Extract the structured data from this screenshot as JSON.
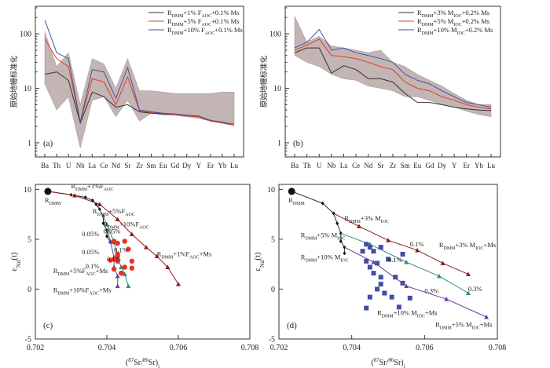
{
  "colors": {
    "black": "#333333",
    "red": "#e03c2c",
    "blue": "#4a4fa8",
    "band": "#b9a9a6",
    "darkred": "#8b1a1a",
    "green": "#2e8b6f",
    "purple": "#6a3d9a",
    "dot": "#e8321e",
    "square": "#4050a8"
  },
  "chart_data": [
    {
      "id": "a",
      "type": "line",
      "panel_label": "(a)",
      "ylabel": "原始地幔标准化",
      "yscale": "log",
      "ylim": [
        0.55,
        320
      ],
      "ytick_labels": [
        "1",
        "10",
        "100"
      ],
      "ytick_values": [
        1,
        10,
        100
      ],
      "categories": [
        "Ba",
        "Th",
        "U",
        "Nb",
        "La",
        "Ce",
        "Nd",
        "Sr",
        "Zr",
        "Sm",
        "Eu",
        "Gd",
        "Dy",
        "Y",
        "Er",
        "Yb",
        "Lu"
      ],
      "band": {
        "upper": [
          110,
          25,
          45,
          5,
          35,
          28,
          10,
          35,
          9,
          9,
          8.5,
          8,
          8,
          8,
          8,
          8.5,
          8.5
        ],
        "lower": [
          12,
          4,
          7,
          0.8,
          6,
          7,
          3,
          6,
          2.5,
          3.5,
          3.2,
          3.2,
          3,
          2.8,
          2.5,
          2.3,
          2.2
        ]
      },
      "series": [
        {
          "name": "R DMM+1%F AOC+0.1%Ms",
          "color": "black",
          "values": [
            18,
            20,
            14,
            2.3,
            8.5,
            7,
            4.5,
            5,
            3.7,
            3.5,
            3.4,
            3.3,
            3.1,
            3.0,
            2.5,
            2.3,
            2.1
          ]
        },
        {
          "name": "R DMM+5%F AOC+0.1%Ms",
          "color": "red",
          "values": [
            80,
            35,
            25,
            2.4,
            15,
            13,
            5,
            16,
            3.9,
            3.6,
            3.5,
            3.3,
            3.1,
            3.0,
            2.5,
            2.3,
            2.1
          ]
        },
        {
          "name": "R DMM+10%F AOC+0.1%Ms",
          "color": "blue",
          "values": [
            180,
            45,
            35,
            2.4,
            22,
            20,
            6.5,
            24,
            4,
            3.7,
            3.5,
            3.4,
            3.2,
            3.1,
            2.6,
            2.4,
            2.2
          ]
        }
      ],
      "legend": [
        {
          "base": "R",
          "sub": "DMM",
          "mid": "+1% F",
          "sub2": "AOC",
          "tail": "+0.1% Ms",
          "color": "black"
        },
        {
          "base": "R",
          "sub": "DMM",
          "mid": "+5% F",
          "sub2": "AOC",
          "tail": "+0.1% Ms",
          "color": "red"
        },
        {
          "base": "R",
          "sub": "DMM",
          "mid": "+10% F",
          "sub2": "AOC",
          "tail": "+0.1% Ms",
          "color": "blue"
        }
      ]
    },
    {
      "id": "b",
      "type": "line",
      "panel_label": "(b)",
      "ylabel": "原始地幔标准化",
      "yscale": "log",
      "ylim": [
        0.55,
        320
      ],
      "ytick_labels": [
        "1",
        "10",
        "100"
      ],
      "ytick_values": [
        1,
        10,
        100
      ],
      "categories": [
        "Ba",
        "Th",
        "U",
        "Nb",
        "La",
        "Ce",
        "Nd",
        "Sr",
        "Zr",
        "Sm",
        "Eu",
        "Gd",
        "Dy",
        "Y",
        "Er",
        "Yb",
        "Lu"
      ],
      "band": {
        "upper": [
          210,
          70,
          90,
          60,
          55,
          50,
          45,
          50,
          30,
          25,
          18,
          14,
          11,
          8,
          6,
          5,
          5
        ],
        "lower": [
          40,
          30,
          25,
          18,
          15,
          14,
          11,
          10,
          9,
          7,
          7,
          6,
          5,
          4.5,
          3.8,
          3.3,
          3
        ]
      },
      "series": [
        {
          "name": "R DMM+3% M IOC+0.2% Ms",
          "color": "black",
          "values": [
            45,
            55,
            55,
            19,
            26,
            22,
            15,
            15,
            13,
            8,
            5.5,
            5.5,
            5,
            4.5,
            4.2,
            4,
            3.9
          ]
        },
        {
          "name": "R DMM+5% M IOC+0.2% Ms",
          "color": "red",
          "values": [
            50,
            62,
            80,
            40,
            38,
            35,
            30,
            25,
            22,
            13,
            10,
            9,
            7,
            6,
            5,
            4.5,
            4.2
          ]
        },
        {
          "name": "R DMM+10% M IOC+0.2% Ms",
          "color": "blue",
          "values": [
            55,
            70,
            120,
            50,
            55,
            45,
            40,
            35,
            30,
            18,
            14,
            12,
            9,
            7,
            5.5,
            5,
            4.5
          ]
        }
      ],
      "legend": [
        {
          "base": "R",
          "sub": "DMM",
          "mid": "+3% M",
          "sub2": "IOC",
          "tail": "+0.2% Ms",
          "color": "black"
        },
        {
          "base": "R",
          "sub": "DMM",
          "mid": "+5% M",
          "sub2": "IOC",
          "tail": "+0.2% Ms",
          "color": "red"
        },
        {
          "base": "R",
          "sub": "DMM",
          "mid": "+10% M",
          "sub2": "IOC",
          "tail": "+0.2% Ms",
          "color": "blue"
        }
      ]
    },
    {
      "id": "c",
      "type": "scatter",
      "panel_label": "(c)",
      "xlim": [
        0.702,
        0.708
      ],
      "ylim": [
        -5,
        10.5
      ],
      "xtick_labels": [
        "0.702",
        "0.704",
        "0.706",
        "0.708"
      ],
      "xtick_values": [
        0.702,
        0.704,
        0.706,
        0.708
      ],
      "ytick_labels": [
        "-5",
        "0",
        "5",
        "10"
      ],
      "ytick_values": [
        -5,
        0,
        5,
        10
      ],
      "xlabel": {
        "open": "(",
        "sup1": "87",
        "mid": "Sr/",
        "sup2": "86",
        "close": "Sr)",
        "sub": "i"
      },
      "ylabel": {
        "main": "ε",
        "sub": "Nd",
        "tail": "(t)"
      },
      "source": {
        "x": 0.70235,
        "y": 9.8,
        "label": {
          "base": "R",
          "sub": "DMM"
        }
      },
      "curves": [
        {
          "color": "black",
          "marker": "diamond",
          "points": [
            [
              0.70235,
              9.8
            ],
            [
              0.703,
              9.45
            ],
            [
              0.7034,
              9.2
            ],
            [
              0.7036,
              8.9
            ],
            [
              0.7037,
              8.5
            ],
            [
              0.7038,
              8.0
            ],
            [
              0.7039,
              7.3
            ],
            [
              0.7039,
              6.6
            ],
            [
              0.704,
              5.9
            ],
            [
              0.704,
              5.3
            ],
            [
              0.7041,
              4.7
            ]
          ]
        },
        {
          "color": "darkred",
          "marker": "triangle",
          "points": [
            [
              0.70235,
              9.8
            ],
            [
              0.7031,
              9.4
            ],
            [
              0.7038,
              8.5
            ],
            [
              0.7043,
              7
            ],
            [
              0.7047,
              5.5
            ],
            [
              0.7051,
              4.2
            ],
            [
              0.7054,
              3.3
            ],
            [
              0.7057,
              2.2
            ],
            [
              0.706,
              0.5
            ]
          ]
        },
        {
          "color": "green",
          "marker": "triangle",
          "points": [
            [
              0.7038,
              8.0
            ],
            [
              0.704,
              6.5
            ],
            [
              0.7042,
              4.7
            ],
            [
              0.7043,
              3.2
            ],
            [
              0.7044,
              2.2
            ],
            [
              0.7045,
              1.5
            ],
            [
              0.7046,
              0.3
            ]
          ]
        },
        {
          "color": "purple",
          "marker": "triangle",
          "points": [
            [
              0.704,
              5.9
            ],
            [
              0.7041,
              4.8
            ],
            [
              0.7042,
              3.2
            ],
            [
              0.7042,
              2.2
            ],
            [
              0.7043,
              1.3
            ],
            [
              0.7043,
              0.3
            ]
          ]
        }
      ],
      "data_points": [
        [
          0.7042,
          4.8
        ],
        [
          0.7043,
          4.6
        ],
        [
          0.7045,
          4.8
        ],
        [
          0.7046,
          4.0
        ],
        [
          0.7043,
          3.5
        ],
        [
          0.7043,
          3.3
        ],
        [
          0.7042,
          3.0
        ],
        [
          0.7041,
          2.9
        ],
        [
          0.7043,
          2.8
        ],
        [
          0.7045,
          2.2
        ],
        [
          0.7047,
          2.8
        ],
        [
          0.7042,
          2.0
        ],
        [
          0.7044,
          1.6
        ],
        [
          0.7047,
          2.1
        ]
      ],
      "labels": [
        {
          "text": "R DMM+1%F AOC",
          "base": "R",
          "sub": "DMM",
          "mid": "+1%F",
          "sub2": "AOC",
          "tail": "",
          "x": 0.703,
          "y": 10.1
        },
        {
          "text": "R DMM+5%F AOC",
          "base": "R",
          "sub": "DMM",
          "mid": "+5%F",
          "sub2": "AOC",
          "tail": "",
          "x": 0.7036,
          "y": 7.6
        },
        {
          "text": "R DMM+10%F AOC",
          "base": "R",
          "sub": "DMM",
          "mid": "+10%F",
          "sub2": "AOC",
          "tail": "",
          "x": 0.7039,
          "y": 6.3
        },
        {
          "text": "R DMM+1%F AOC+Ms",
          "base": "R",
          "sub": "DMM",
          "mid": "+1%F",
          "sub2": "AOC",
          "tail": "+Ms",
          "x": 0.7054,
          "y": 3.3
        },
        {
          "text": "R DMM+5%F AOC+Ms",
          "base": "R",
          "sub": "DMM",
          "mid": "+5%F",
          "sub2": "AOC",
          "tail": "+Ms",
          "x": 0.7025,
          "y": 1.6
        },
        {
          "text": "R DMM+10%F AOC+Ms",
          "base": "R",
          "sub": "DMM",
          "mid": "+10%F",
          "sub2": "AOC",
          "tail": "+Ms",
          "x": 0.7025,
          "y": -0.3
        }
      ],
      "pct_labels": [
        {
          "text": "0.05%",
          "x": 0.7033,
          "y": 5.3
        },
        {
          "text": "0.05%",
          "x": 0.7039,
          "y": 5.6
        },
        {
          "text": "0.05%",
          "x": 0.7033,
          "y": 3.5
        },
        {
          "text": "0.1%",
          "x": 0.7042,
          "y": 3.7
        },
        {
          "text": "0.1%",
          "x": 0.704,
          "y": 2.8
        },
        {
          "text": "0.1%",
          "x": 0.7034,
          "y": 2.1
        }
      ]
    },
    {
      "id": "d",
      "type": "scatter",
      "panel_label": "(d)",
      "xlim": [
        0.702,
        0.708
      ],
      "ylim": [
        -5,
        10.5
      ],
      "xtick_labels": [
        "0.702",
        "0.704",
        "0.706",
        "0.708"
      ],
      "xtick_values": [
        0.702,
        0.704,
        0.706,
        0.708
      ],
      "ytick_labels": [
        "-5",
        "0",
        "5",
        "10"
      ],
      "ytick_values": [
        -5,
        0,
        5,
        10
      ],
      "xlabel": {
        "open": "(",
        "sup1": "87",
        "mid": "Sr/",
        "sup2": "86",
        "close": "Sr)",
        "sub": "i"
      },
      "ylabel": {
        "main": "ε",
        "sub": "Nd",
        "tail": "(t)"
      },
      "source": {
        "x": 0.70235,
        "y": 9.8,
        "label": {
          "base": "R",
          "sub": "DMM"
        }
      },
      "curves": [
        {
          "color": "black",
          "marker": "diamond",
          "points": [
            [
              0.70235,
              9.8
            ],
            [
              0.7032,
              8.6
            ],
            [
              0.7035,
              7.6
            ],
            [
              0.7036,
              6.6
            ],
            [
              0.7037,
              5.6
            ],
            [
              0.7037,
              4.8
            ],
            [
              0.7038,
              4.2
            ],
            [
              0.7038,
              3.6
            ]
          ]
        },
        {
          "color": "darkred",
          "marker": "triangle",
          "points": [
            [
              0.7035,
              7.6
            ],
            [
              0.7042,
              6.3
            ],
            [
              0.705,
              4.9
            ],
            [
              0.7058,
              3.9
            ],
            [
              0.7065,
              2.6
            ],
            [
              0.7072,
              1.5
            ]
          ]
        },
        {
          "color": "green",
          "marker": "triangle",
          "points": [
            [
              0.7037,
              5.6
            ],
            [
              0.7045,
              4.5
            ],
            [
              0.7055,
              2.7
            ],
            [
              0.7064,
              1.3
            ],
            [
              0.7072,
              -0.4
            ]
          ]
        },
        {
          "color": "purple",
          "marker": "triangle",
          "points": [
            [
              0.7038,
              4.2
            ],
            [
              0.7046,
              2.7
            ],
            [
              0.7055,
              0.3
            ],
            [
              0.7066,
              -1.0
            ],
            [
              0.7077,
              -2.8
            ]
          ]
        }
      ],
      "data_points": [
        [
          0.7044,
          4.5
        ],
        [
          0.7045,
          4.2
        ],
        [
          0.7048,
          4.2
        ],
        [
          0.7043,
          3.8
        ],
        [
          0.7046,
          3.8
        ],
        [
          0.705,
          3.0
        ],
        [
          0.7054,
          3.5
        ],
        [
          0.7044,
          2.8
        ],
        [
          0.7047,
          2.6
        ],
        [
          0.7045,
          2.2
        ],
        [
          0.7046,
          1.6
        ],
        [
          0.7048,
          1.2
        ],
        [
          0.7048,
          0.5
        ],
        [
          0.7052,
          1.2
        ],
        [
          0.7054,
          0.6
        ],
        [
          0.7047,
          0.0
        ],
        [
          0.7049,
          -0.4
        ],
        [
          0.7051,
          -0.8
        ],
        [
          0.7045,
          -0.8
        ],
        [
          0.7056,
          -0.9
        ],
        [
          0.7053,
          -1.8
        ],
        [
          0.7044,
          -1.9
        ]
      ],
      "labels": [
        {
          "text": "R DMM+3% M IOC",
          "base": "R",
          "sub": "DMM",
          "mid": "+3% M",
          "sub2": "IOC",
          "tail": "",
          "x": 0.7038,
          "y": 6.9
        },
        {
          "text": "R DMM+5% M IOC",
          "base": "R",
          "sub": "DMM",
          "mid": "+5% M",
          "sub2": "IOC",
          "tail": "",
          "x": 0.7026,
          "y": 5.2
        },
        {
          "text": "R DMM+10% M IOC",
          "base": "R",
          "sub": "DMM",
          "mid": "+10% M",
          "sub2": "IOC",
          "tail": "",
          "x": 0.7026,
          "y": 3.0
        },
        {
          "text": "R DMM+3% M IOC+Ms",
          "base": "R",
          "sub": "DMM",
          "mid": "+3% M",
          "sub2": "IOC",
          "tail": "+Ms",
          "x": 0.7064,
          "y": 4.2
        },
        {
          "text": "R DMM+10% M IOC+Ms",
          "base": "R",
          "sub": "DMM",
          "mid": "+10% M",
          "sub2": "IOC",
          "tail": "+Ms",
          "x": 0.7047,
          "y": -2.6
        },
        {
          "text": "R DMM+5% M IOC+Ms",
          "base": "R",
          "sub": "DMM",
          "mid": "+5% M",
          "sub2": "IOC",
          "tail": "+Ms",
          "x": 0.7063,
          "y": -3.8
        }
      ],
      "pct_labels": [
        {
          "text": "0.1%",
          "x": 0.7056,
          "y": 4.3
        },
        {
          "text": "0.1%",
          "x": 0.705,
          "y": 2.7
        },
        {
          "text": "0.3%",
          "x": 0.706,
          "y": -0.4
        },
        {
          "text": "0.3%",
          "x": 0.7072,
          "y": -0.2
        }
      ]
    }
  ]
}
